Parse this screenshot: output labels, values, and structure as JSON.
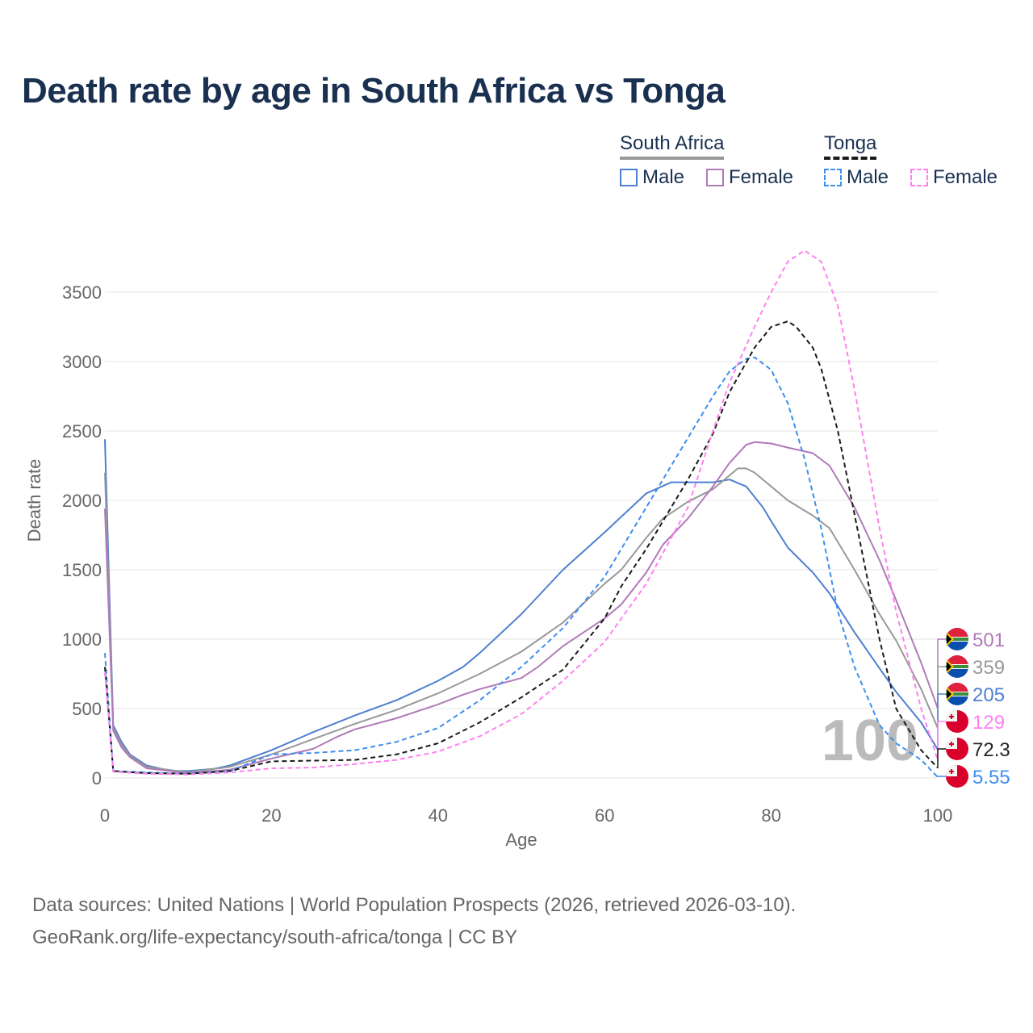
{
  "title": "Death rate by age in South Africa vs Tonga",
  "legend": {
    "groups": [
      {
        "name": "South Africa",
        "items": [
          "Male",
          "Female"
        ]
      },
      {
        "name": "Tonga",
        "items": [
          "Male",
          "Female"
        ]
      }
    ]
  },
  "watermark": "100",
  "footer": {
    "line1": "Data sources: United Nations | World Population Prospects (2026, retrieved 2026-03-10).",
    "line2": "GeoRank.org/life-expectancy/south-africa/tonga | CC BY"
  },
  "chart_data": {
    "type": "line",
    "title": "Death rate by age in South Africa vs Tonga",
    "xlabel": "Age",
    "ylabel": "Death rate",
    "xlim": [
      0,
      100
    ],
    "ylim": [
      0,
      3800
    ],
    "xticks": [
      0,
      20,
      40,
      60,
      80,
      100
    ],
    "yticks": [
      0,
      500,
      1000,
      1500,
      2000,
      2500,
      3000,
      3500
    ],
    "grid": true,
    "legend_position": "top-right",
    "series": [
      {
        "name": "South Africa Male",
        "color": "#4f7fd0",
        "dash": false,
        "end_label": "205",
        "points": [
          [
            0,
            2440
          ],
          [
            1,
            380
          ],
          [
            2,
            260
          ],
          [
            3,
            170
          ],
          [
            5,
            90
          ],
          [
            8,
            50
          ],
          [
            10,
            50
          ],
          [
            13,
            65
          ],
          [
            15,
            90
          ],
          [
            20,
            200
          ],
          [
            25,
            330
          ],
          [
            30,
            450
          ],
          [
            35,
            560
          ],
          [
            40,
            700
          ],
          [
            43,
            800
          ],
          [
            45,
            900
          ],
          [
            50,
            1180
          ],
          [
            55,
            1500
          ],
          [
            60,
            1770
          ],
          [
            65,
            2050
          ],
          [
            68,
            2130
          ],
          [
            70,
            2130
          ],
          [
            73,
            2130
          ],
          [
            75,
            2150
          ],
          [
            77,
            2100
          ],
          [
            79,
            1950
          ],
          [
            80,
            1850
          ],
          [
            82,
            1660
          ],
          [
            85,
            1480
          ],
          [
            87,
            1330
          ],
          [
            90,
            1050
          ],
          [
            93,
            790
          ],
          [
            95,
            620
          ],
          [
            98,
            400
          ],
          [
            100,
            205
          ]
        ]
      },
      {
        "name": "South Africa Both",
        "color": "#999999",
        "dash": false,
        "end_label": "359",
        "points": [
          [
            0,
            2200
          ],
          [
            1,
            360
          ],
          [
            2,
            240
          ],
          [
            3,
            160
          ],
          [
            5,
            80
          ],
          [
            10,
            40
          ],
          [
            15,
            80
          ],
          [
            20,
            170
          ],
          [
            25,
            280
          ],
          [
            30,
            390
          ],
          [
            35,
            490
          ],
          [
            40,
            610
          ],
          [
            45,
            750
          ],
          [
            50,
            910
          ],
          [
            55,
            1120
          ],
          [
            60,
            1400
          ],
          [
            62,
            1500
          ],
          [
            65,
            1730
          ],
          [
            67,
            1870
          ],
          [
            70,
            1990
          ],
          [
            73,
            2080
          ],
          [
            76,
            2230
          ],
          [
            77,
            2230
          ],
          [
            78,
            2200
          ],
          [
            80,
            2100
          ],
          [
            82,
            2000
          ],
          [
            85,
            1890
          ],
          [
            87,
            1800
          ],
          [
            90,
            1500
          ],
          [
            93,
            1180
          ],
          [
            95,
            990
          ],
          [
            98,
            640
          ],
          [
            100,
            359
          ]
        ]
      },
      {
        "name": "South Africa Female",
        "color": "#b07ab8",
        "dash": false,
        "end_label": "501",
        "points": [
          [
            0,
            1940
          ],
          [
            1,
            340
          ],
          [
            2,
            220
          ],
          [
            3,
            150
          ],
          [
            5,
            70
          ],
          [
            10,
            35
          ],
          [
            15,
            60
          ],
          [
            20,
            140
          ],
          [
            25,
            210
          ],
          [
            28,
            300
          ],
          [
            30,
            350
          ],
          [
            35,
            430
          ],
          [
            40,
            530
          ],
          [
            43,
            600
          ],
          [
            45,
            640
          ],
          [
            50,
            720
          ],
          [
            52,
            800
          ],
          [
            55,
            950
          ],
          [
            60,
            1150
          ],
          [
            62,
            1250
          ],
          [
            65,
            1480
          ],
          [
            67,
            1680
          ],
          [
            70,
            1870
          ],
          [
            73,
            2100
          ],
          [
            75,
            2270
          ],
          [
            77,
            2400
          ],
          [
            78,
            2420
          ],
          [
            80,
            2410
          ],
          [
            82,
            2380
          ],
          [
            85,
            2340
          ],
          [
            87,
            2250
          ],
          [
            90,
            1950
          ],
          [
            93,
            1570
          ],
          [
            95,
            1280
          ],
          [
            98,
            830
          ],
          [
            100,
            501
          ]
        ]
      },
      {
        "name": "Tonga Male",
        "color": "#3d8ef0",
        "dash": true,
        "end_label": "5.55",
        "points": [
          [
            0,
            900
          ],
          [
            1,
            50
          ],
          [
            5,
            40
          ],
          [
            10,
            30
          ],
          [
            15,
            50
          ],
          [
            20,
            170
          ],
          [
            25,
            180
          ],
          [
            30,
            200
          ],
          [
            35,
            260
          ],
          [
            40,
            360
          ],
          [
            45,
            560
          ],
          [
            50,
            800
          ],
          [
            55,
            1080
          ],
          [
            60,
            1450
          ],
          [
            65,
            1950
          ],
          [
            70,
            2450
          ],
          [
            73,
            2750
          ],
          [
            75,
            2930
          ],
          [
            77,
            3020
          ],
          [
            78,
            3030
          ],
          [
            80,
            2940
          ],
          [
            82,
            2700
          ],
          [
            84,
            2300
          ],
          [
            86,
            1800
          ],
          [
            88,
            1200
          ],
          [
            90,
            800
          ],
          [
            93,
            380
          ],
          [
            95,
            250
          ],
          [
            98,
            130
          ],
          [
            100,
            5.55
          ]
        ]
      },
      {
        "name": "Tonga Both",
        "color": "#1a1a1a",
        "dash": true,
        "end_label": "72.3",
        "points": [
          [
            0,
            800
          ],
          [
            1,
            50
          ],
          [
            5,
            35
          ],
          [
            10,
            30
          ],
          [
            15,
            50
          ],
          [
            20,
            120
          ],
          [
            25,
            125
          ],
          [
            30,
            130
          ],
          [
            35,
            170
          ],
          [
            40,
            250
          ],
          [
            45,
            400
          ],
          [
            50,
            580
          ],
          [
            55,
            780
          ],
          [
            60,
            1150
          ],
          [
            62,
            1380
          ],
          [
            65,
            1650
          ],
          [
            70,
            2150
          ],
          [
            73,
            2480
          ],
          [
            75,
            2780
          ],
          [
            78,
            3100
          ],
          [
            80,
            3250
          ],
          [
            82,
            3290
          ],
          [
            83,
            3250
          ],
          [
            85,
            3100
          ],
          [
            86,
            2950
          ],
          [
            88,
            2500
          ],
          [
            90,
            1900
          ],
          [
            93,
            1000
          ],
          [
            95,
            500
          ],
          [
            98,
            200
          ],
          [
            100,
            72.3
          ]
        ]
      },
      {
        "name": "Tonga Female",
        "color": "#ff80f0",
        "dash": true,
        "end_label": "129",
        "points": [
          [
            0,
            760
          ],
          [
            1,
            45
          ],
          [
            5,
            30
          ],
          [
            10,
            25
          ],
          [
            15,
            40
          ],
          [
            20,
            70
          ],
          [
            25,
            75
          ],
          [
            30,
            100
          ],
          [
            35,
            130
          ],
          [
            40,
            190
          ],
          [
            45,
            300
          ],
          [
            50,
            460
          ],
          [
            55,
            700
          ],
          [
            60,
            980
          ],
          [
            65,
            1400
          ],
          [
            70,
            1950
          ],
          [
            73,
            2500
          ],
          [
            75,
            2850
          ],
          [
            78,
            3250
          ],
          [
            80,
            3500
          ],
          [
            82,
            3720
          ],
          [
            84,
            3800
          ],
          [
            86,
            3720
          ],
          [
            88,
            3400
          ],
          [
            90,
            2800
          ],
          [
            93,
            1800
          ],
          [
            95,
            1200
          ],
          [
            98,
            500
          ],
          [
            100,
            129
          ]
        ]
      }
    ]
  }
}
